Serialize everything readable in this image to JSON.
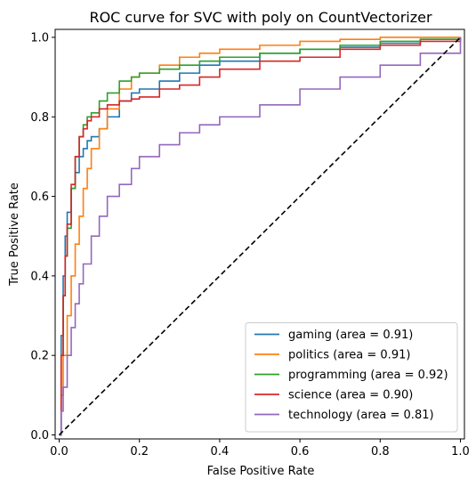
{
  "chart_data": {
    "type": "line",
    "title": "ROC curve for SVC with poly on CountVectorizer",
    "xlabel": "False Positive Rate",
    "ylabel": "True Positive Rate",
    "xlim": [
      -0.01,
      1.01
    ],
    "ylim": [
      -0.01,
      1.02
    ],
    "xticks": [
      0.0,
      0.2,
      0.4,
      0.6,
      0.8,
      1.0
    ],
    "yticks": [
      0.0,
      0.2,
      0.4,
      0.6,
      0.8,
      1.0
    ],
    "xtick_labels": [
      "0.0",
      "0.2",
      "0.4",
      "0.6",
      "0.8",
      "1.0"
    ],
    "ytick_labels": [
      "0.0",
      "0.2",
      "0.4",
      "0.6",
      "0.8",
      "1.0"
    ],
    "grid": false,
    "legend_position": "lower-right",
    "diagonal": {
      "x": [
        0,
        1
      ],
      "y": [
        0,
        1
      ],
      "color": "#000000",
      "style": "dashed"
    },
    "series": [
      {
        "name": "gaming (area = 0.91)",
        "color": "#1f77b4",
        "x": [
          0.0,
          0.005,
          0.01,
          0.015,
          0.02,
          0.03,
          0.04,
          0.05,
          0.06,
          0.07,
          0.08,
          0.1,
          0.12,
          0.15,
          0.18,
          0.2,
          0.25,
          0.3,
          0.35,
          0.4,
          0.5,
          0.6,
          0.7,
          0.8,
          0.9,
          1.0
        ],
        "y": [
          0.0,
          0.25,
          0.4,
          0.5,
          0.56,
          0.62,
          0.66,
          0.7,
          0.72,
          0.74,
          0.75,
          0.77,
          0.8,
          0.84,
          0.86,
          0.87,
          0.89,
          0.91,
          0.93,
          0.94,
          0.96,
          0.97,
          0.975,
          0.985,
          0.995,
          1.0
        ]
      },
      {
        "name": "politics (area = 0.91)",
        "color": "#ff7f0e",
        "x": [
          0.0,
          0.005,
          0.01,
          0.02,
          0.03,
          0.04,
          0.05,
          0.06,
          0.07,
          0.08,
          0.1,
          0.12,
          0.15,
          0.18,
          0.2,
          0.25,
          0.3,
          0.35,
          0.4,
          0.5,
          0.6,
          0.7,
          0.8,
          0.9,
          1.0
        ],
        "y": [
          0.0,
          0.1,
          0.2,
          0.3,
          0.4,
          0.48,
          0.55,
          0.62,
          0.67,
          0.72,
          0.77,
          0.82,
          0.87,
          0.9,
          0.91,
          0.93,
          0.95,
          0.96,
          0.97,
          0.98,
          0.99,
          0.995,
          1.0,
          1.0,
          1.0
        ]
      },
      {
        "name": "programming (area = 0.92)",
        "color": "#2ca02c",
        "x": [
          0.0,
          0.005,
          0.01,
          0.015,
          0.02,
          0.03,
          0.04,
          0.05,
          0.06,
          0.07,
          0.08,
          0.1,
          0.12,
          0.15,
          0.18,
          0.2,
          0.25,
          0.3,
          0.35,
          0.4,
          0.5,
          0.6,
          0.7,
          0.8,
          0.9,
          1.0
        ],
        "y": [
          0.0,
          0.2,
          0.35,
          0.45,
          0.52,
          0.62,
          0.7,
          0.75,
          0.78,
          0.8,
          0.81,
          0.84,
          0.86,
          0.89,
          0.9,
          0.91,
          0.92,
          0.93,
          0.94,
          0.95,
          0.96,
          0.97,
          0.98,
          0.99,
          0.995,
          1.0
        ]
      },
      {
        "name": "science (area = 0.90)",
        "color": "#d62728",
        "x": [
          0.0,
          0.005,
          0.01,
          0.015,
          0.02,
          0.03,
          0.04,
          0.05,
          0.06,
          0.07,
          0.08,
          0.1,
          0.12,
          0.15,
          0.18,
          0.2,
          0.25,
          0.3,
          0.35,
          0.4,
          0.5,
          0.6,
          0.7,
          0.8,
          0.9,
          1.0
        ],
        "y": [
          0.0,
          0.2,
          0.35,
          0.45,
          0.53,
          0.63,
          0.7,
          0.75,
          0.77,
          0.79,
          0.8,
          0.82,
          0.83,
          0.84,
          0.845,
          0.85,
          0.87,
          0.88,
          0.9,
          0.92,
          0.94,
          0.95,
          0.97,
          0.98,
          0.99,
          1.0
        ]
      },
      {
        "name": "technology (area = 0.81)",
        "color": "#9467bd",
        "x": [
          0.0,
          0.005,
          0.01,
          0.02,
          0.03,
          0.04,
          0.05,
          0.06,
          0.08,
          0.1,
          0.12,
          0.15,
          0.18,
          0.2,
          0.25,
          0.3,
          0.35,
          0.4,
          0.5,
          0.6,
          0.7,
          0.8,
          0.9,
          1.0
        ],
        "y": [
          0.0,
          0.06,
          0.12,
          0.2,
          0.27,
          0.33,
          0.38,
          0.43,
          0.5,
          0.55,
          0.6,
          0.63,
          0.67,
          0.7,
          0.73,
          0.76,
          0.78,
          0.8,
          0.83,
          0.87,
          0.9,
          0.93,
          0.96,
          1.0
        ]
      }
    ]
  }
}
